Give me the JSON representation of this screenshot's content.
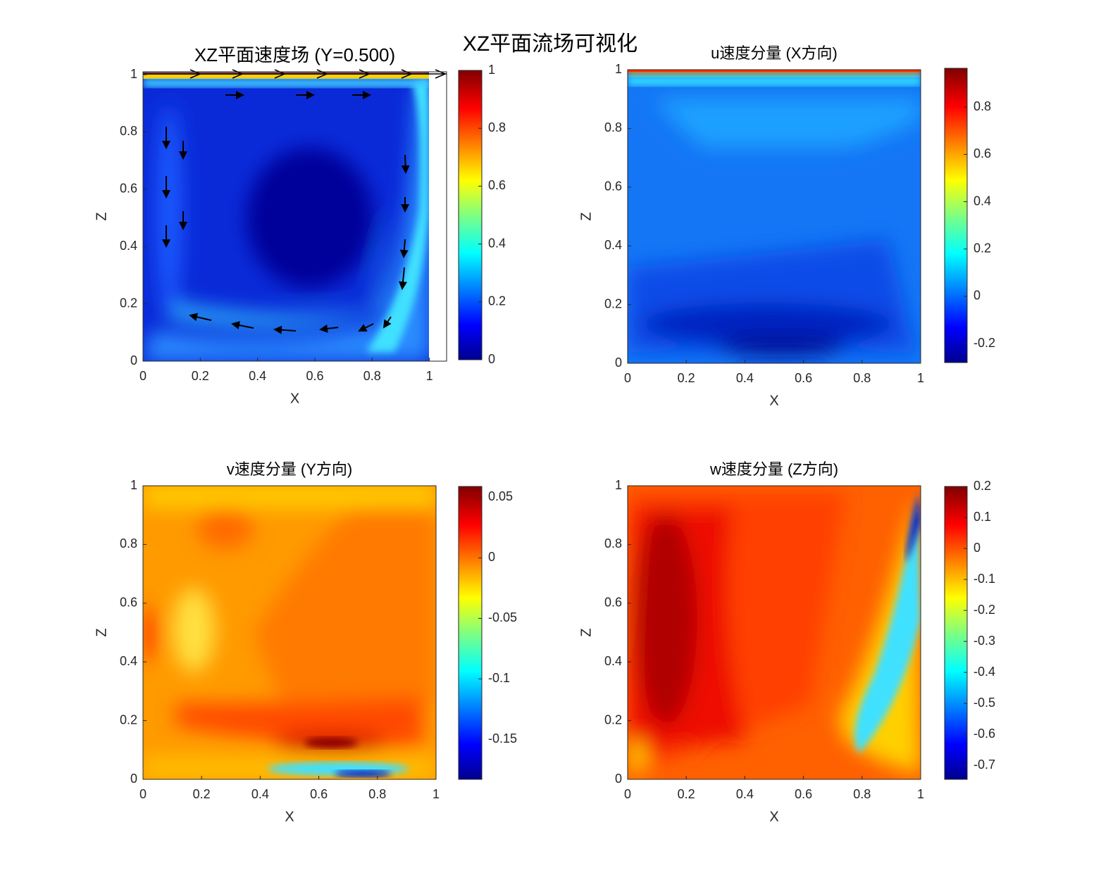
{
  "title": "XZ平面流场可视化",
  "chart_data": [
    {
      "type": "contour",
      "title": "XZ平面速度场 (Y=0.500)",
      "xlabel": "X",
      "ylabel": "Z",
      "colormap": "jet",
      "xlim": [
        0,
        1.06
      ],
      "ylim": [
        0,
        1.01
      ],
      "xticks": [
        0,
        0.2,
        0.4,
        0.6,
        0.8,
        1
      ],
      "yticks": [
        0,
        0.2,
        0.4,
        0.6,
        0.8,
        1
      ],
      "clim": [
        0,
        1
      ],
      "cticks": [
        0,
        0.2,
        0.4,
        0.6,
        0.8,
        1
      ]
    },
    {
      "type": "contour",
      "title": "u速度分量 (X方向)",
      "xlabel": "X",
      "ylabel": "Z",
      "colormap": "jet",
      "xlim": [
        0,
        1
      ],
      "ylim": [
        0,
        1
      ],
      "xticks": [
        0,
        0.2,
        0.4,
        0.6,
        0.8,
        1
      ],
      "yticks": [
        0,
        0.2,
        0.4,
        0.6,
        0.8,
        1
      ],
      "clim": [
        -0.28,
        0.964
      ],
      "cticks": [
        -0.2,
        0,
        0.2,
        0.4,
        0.6,
        0.8
      ]
    },
    {
      "type": "contour",
      "title": "v速度分量 (Y方向)",
      "xlabel": "X",
      "ylabel": "Z",
      "colormap": "jet",
      "xlim": [
        0,
        1
      ],
      "ylim": [
        0,
        1
      ],
      "xticks": [
        0,
        0.2,
        0.4,
        0.6,
        0.8,
        1
      ],
      "yticks": [
        0,
        0.2,
        0.4,
        0.6,
        0.8,
        1
      ],
      "clim": [
        -0.183,
        0.059
      ],
      "cticks": [
        -0.15,
        -0.1,
        -0.05,
        0,
        0.05
      ]
    },
    {
      "type": "contour",
      "title": "w速度分量 (Z方向)",
      "xlabel": "X",
      "ylabel": "Z",
      "colormap": "jet",
      "xlim": [
        0,
        1
      ],
      "ylim": [
        0,
        1
      ],
      "xticks": [
        0,
        0.2,
        0.4,
        0.6,
        0.8,
        1
      ],
      "yticks": [
        0,
        0.2,
        0.4,
        0.6,
        0.8,
        1
      ],
      "clim": [
        -0.745,
        0.2
      ],
      "cticks": [
        -0.7,
        -0.6,
        -0.5,
        -0.4,
        -0.3,
        -0.2,
        -0.1,
        0,
        0.1,
        0.2
      ]
    }
  ]
}
